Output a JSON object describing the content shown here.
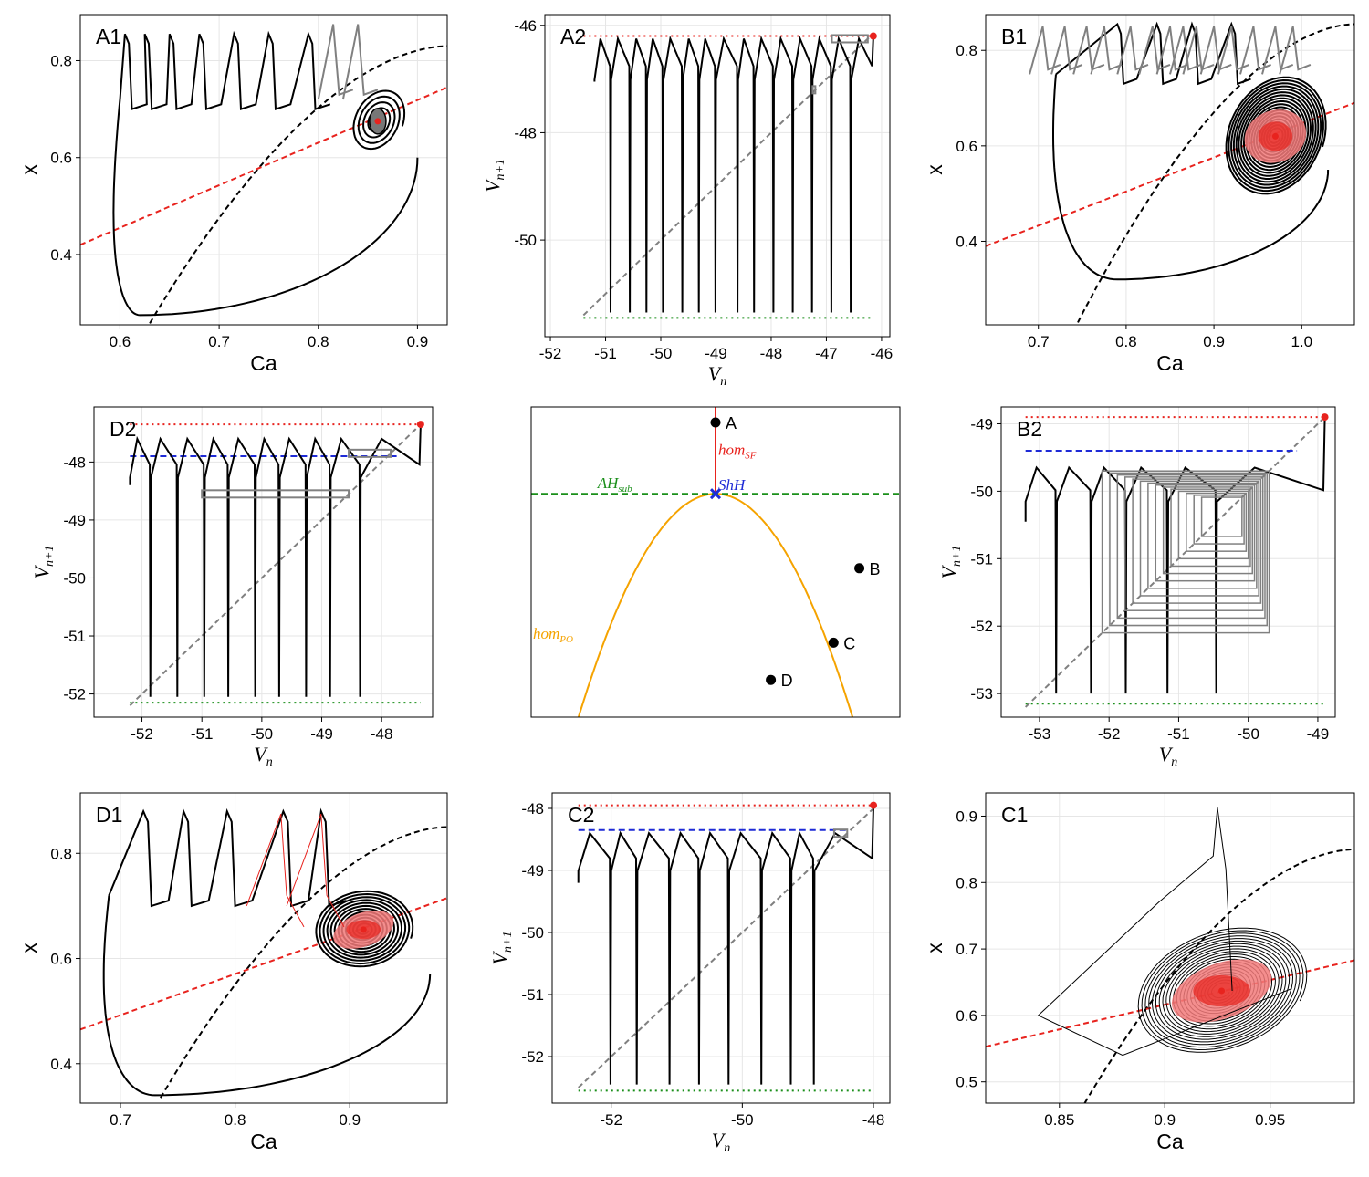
{
  "chart_data": [
    {
      "id": "A1",
      "type": "line",
      "panel_label": "A1",
      "kind": "phase",
      "xlabel": "Ca",
      "ylabel": "x",
      "xlim": [
        0.56,
        0.93
      ],
      "ylim": [
        0.255,
        0.895
      ],
      "xticks": [
        {
          "v": 0.6,
          "t": "0.6"
        },
        {
          "v": 0.7,
          "t": "0.7"
        },
        {
          "v": 0.8,
          "t": "0.8"
        },
        {
          "v": 0.9,
          "t": "0.9"
        }
      ],
      "yticks": [
        {
          "v": 0.4,
          "t": "0.4"
        },
        {
          "v": 0.6,
          "t": "0.6"
        },
        {
          "v": 0.8,
          "t": "0.8"
        }
      ],
      "null_x": {
        "x0": 0.63,
        "y0": 0.258,
        "x1": 0.93,
        "y1": 0.83,
        "a": 0.6,
        "b": 1.0
      },
      "null_ca": {
        "x": [
          0.56,
          0.93
        ],
        "y": [
          0.42,
          0.745
        ]
      },
      "eq": [
        0.86,
        0.675
      ],
      "burst": {
        "start": [
          0.6,
          0.72
        ],
        "spikes": [
          0.605,
          0.625,
          0.65,
          0.68,
          0.715,
          0.75,
          0.79
        ],
        "peak": 0.855,
        "trough": 0.7,
        "end": [
          0.81,
          0.74
        ],
        "loop": [
          0.62,
          0.275
        ],
        "loop_right": [
          0.9,
          0.6
        ]
      },
      "grey_spikes": [
        0.815,
        0.84
      ],
      "grey_peak": 0.875,
      "spiral": {
        "rx0": 0.03,
        "ry0": 0.09,
        "turns": 5
      }
    },
    {
      "id": "A2",
      "type": "line",
      "panel_label": "A2",
      "kind": "map",
      "xlabel": "V_n",
      "ylabel": "V_{n+1}",
      "xlim": [
        -52.1,
        -45.85
      ],
      "ylim": [
        -51.8,
        -45.8
      ],
      "xticks": [
        {
          "v": -52,
          "t": "-52"
        },
        {
          "v": -51,
          "t": "-51"
        },
        {
          "v": -50,
          "t": "-50"
        },
        {
          "v": -49,
          "t": "-49"
        },
        {
          "v": -48,
          "t": "-48"
        },
        {
          "v": -47,
          "t": "-47"
        },
        {
          "v": -46,
          "t": "-46"
        }
      ],
      "yticks": [
        {
          "v": -50,
          "t": "-50"
        },
        {
          "v": -48,
          "t": "-48"
        },
        {
          "v": -46,
          "t": "-46"
        }
      ],
      "red_line": -46.2,
      "blue_line": null,
      "green_line": -51.45,
      "diag": [
        -51.4,
        -46.2
      ],
      "teeth": [
        -51.2,
        -50.9,
        -50.55,
        -50.25,
        -49.95,
        -49.6,
        -49.3,
        -49.0,
        -48.6,
        -48.3,
        -47.95,
        -47.6,
        -47.25,
        -46.9,
        -46.55
      ],
      "top": -46.25,
      "bottom": -51.35,
      "tip": [
        -46.15,
        -46.2
      ],
      "cobweb": [
        [
          -47.25,
          -47.2
        ],
        [
          -46.9,
          -46.25
        ]
      ]
    },
    {
      "id": "B1",
      "type": "line",
      "panel_label": "B1",
      "kind": "phase",
      "xlabel": "Ca",
      "ylabel": "x",
      "xlim": [
        0.64,
        1.06
      ],
      "ylim": [
        0.225,
        0.875
      ],
      "xticks": [
        {
          "v": 0.7,
          "t": "0.7"
        },
        {
          "v": 0.8,
          "t": "0.8"
        },
        {
          "v": 0.9,
          "t": "0.9"
        },
        {
          "v": 1.0,
          "t": "1.0"
        }
      ],
      "yticks": [
        {
          "v": 0.4,
          "t": "0.4"
        },
        {
          "v": 0.6,
          "t": "0.6"
        },
        {
          "v": 0.8,
          "t": "0.8"
        }
      ],
      "null_x": {
        "x0": 0.745,
        "y0": 0.23,
        "x1": 1.06,
        "y1": 0.855,
        "a": 0.6,
        "b": 1.0
      },
      "null_ca": {
        "x": [
          0.64,
          1.06
        ],
        "y": [
          0.39,
          0.69
        ]
      },
      "eq": [
        0.97,
        0.62
      ],
      "burst": {
        "start": [
          0.72,
          0.75
        ],
        "spikes": [
          0.79,
          0.835,
          0.875,
          0.92
        ],
        "peak": 0.855,
        "trough": 0.73,
        "end": [
          0.95,
          0.76
        ],
        "loop": [
          0.79,
          0.32
        ],
        "loop_right": [
          1.03,
          0.55
        ]
      },
      "grey_spikes": [
        0.705,
        0.73,
        0.755,
        0.775,
        0.805,
        0.83,
        0.85,
        0.865,
        0.88,
        0.9,
        0.92,
        0.945,
        0.97,
        0.99
      ],
      "grey_peak": 0.85,
      "spiral": {
        "rx0": 0.065,
        "ry0": 0.17,
        "turns": 18
      }
    },
    {
      "id": "D2",
      "type": "line",
      "panel_label": "D2",
      "kind": "map",
      "xlabel": "V_n",
      "ylabel": "V_{n+1}",
      "xlim": [
        -52.8,
        -47.15
      ],
      "ylim": [
        -52.4,
        -47.05
      ],
      "xticks": [
        {
          "v": -52,
          "t": "-52"
        },
        {
          "v": -51,
          "t": "-51"
        },
        {
          "v": -50,
          "t": "-50"
        },
        {
          "v": -49,
          "t": "-49"
        },
        {
          "v": -48,
          "t": "-48"
        }
      ],
      "yticks": [
        {
          "v": -52,
          "t": "-52"
        },
        {
          "v": -51,
          "t": "-51"
        },
        {
          "v": -50,
          "t": "-50"
        },
        {
          "v": -49,
          "t": "-49"
        },
        {
          "v": -48,
          "t": "-48"
        }
      ],
      "red_line": -47.35,
      "blue_line": -47.9,
      "green_line": -52.15,
      "diag": [
        -52.2,
        -47.4
      ],
      "teeth": [
        -52.2,
        -51.85,
        -51.4,
        -50.95,
        -50.55,
        -50.1,
        -49.7,
        -49.25,
        -48.85,
        -48.35
      ],
      "top": -47.6,
      "bottom": -52.05,
      "tip": [
        -47.35,
        -47.35
      ],
      "cobweb": [
        [
          -51.0,
          -48.55
        ],
        [
          -48.55,
          -47.85
        ]
      ]
    },
    {
      "id": "CENTER",
      "type": "line",
      "kind": "bifurcation",
      "xlim": [
        0,
        1
      ],
      "ylim": [
        0,
        1
      ],
      "labels": {
        "hom_sf": "hom",
        "hom_sf_sub": "SF",
        "shh": "ShH",
        "ah_sub": "AH",
        "ah_sub_sub": "sub",
        "hom_po": "hom",
        "hom_po_sub": "PO"
      },
      "points": [
        {
          "name": "A",
          "x": 0.5,
          "y": 0.95
        },
        {
          "name": "B",
          "x": 0.89,
          "y": 0.48
        },
        {
          "name": "C",
          "x": 0.82,
          "y": 0.24
        },
        {
          "name": "D",
          "x": 0.65,
          "y": 0.12
        }
      ],
      "shh_point": [
        0.5,
        0.72
      ],
      "ah_y": 0.72
    },
    {
      "id": "B2",
      "type": "line",
      "panel_label": "B2",
      "kind": "map",
      "xlabel": "V_n",
      "ylabel": "V_{n+1}",
      "xlim": [
        -53.55,
        -48.75
      ],
      "ylim": [
        -53.35,
        -48.75
      ],
      "xticks": [
        {
          "v": -53,
          "t": "-53"
        },
        {
          "v": -52,
          "t": "-52"
        },
        {
          "v": -51,
          "t": "-51"
        },
        {
          "v": -50,
          "t": "-50"
        },
        {
          "v": -49,
          "t": "-49"
        }
      ],
      "yticks": [
        {
          "v": -53,
          "t": "-53"
        },
        {
          "v": -52,
          "t": "-52"
        },
        {
          "v": -51,
          "t": "-51"
        },
        {
          "v": -50,
          "t": "-50"
        },
        {
          "v": -49,
          "t": "-49"
        }
      ],
      "red_line": -48.9,
      "blue_line": -49.4,
      "green_line": -53.15,
      "diag": [
        -53.2,
        -48.9
      ],
      "teeth": [
        -53.2,
        -52.75,
        -52.25,
        -51.75,
        -51.15,
        -50.45
      ],
      "top": -49.65,
      "bottom": -53.0,
      "tip": [
        -48.9,
        -48.9
      ],
      "cobweb_box": [
        -52.1,
        -49.7,
        -52.1,
        -49.7
      ]
    },
    {
      "id": "D1",
      "type": "line",
      "panel_label": "D1",
      "kind": "phase",
      "xlabel": "Ca",
      "ylabel": "x",
      "xlim": [
        0.665,
        0.985
      ],
      "ylim": [
        0.325,
        0.915
      ],
      "xticks": [
        {
          "v": 0.7,
          "t": "0.7"
        },
        {
          "v": 0.8,
          "t": "0.8"
        },
        {
          "v": 0.9,
          "t": "0.9"
        }
      ],
      "yticks": [
        {
          "v": 0.4,
          "t": "0.4"
        },
        {
          "v": 0.6,
          "t": "0.6"
        },
        {
          "v": 0.8,
          "t": "0.8"
        }
      ],
      "null_x": {
        "x0": 0.735,
        "y0": 0.335,
        "x1": 0.985,
        "y1": 0.85,
        "a": 0.6,
        "b": 1.0
      },
      "null_ca": {
        "x": [
          0.665,
          0.985
        ],
        "y": [
          0.465,
          0.715
        ]
      },
      "eq": [
        0.912,
        0.655
      ],
      "burst": {
        "start": [
          0.69,
          0.72
        ],
        "spikes": [
          0.72,
          0.755,
          0.793,
          0.842,
          0.875
        ],
        "peak": 0.88,
        "trough": 0.7,
        "end": [
          0.81,
          0.55
        ],
        "loop": [
          0.73,
          0.34
        ],
        "loop_right": [
          0.97,
          0.57
        ]
      },
      "red_spikes": [
        0.84,
        0.875
      ],
      "red_peak": 0.875,
      "spiral": {
        "rx0": 0.05,
        "ry0": 0.1,
        "turns": 12
      }
    },
    {
      "id": "C2",
      "type": "line",
      "panel_label": "C2",
      "kind": "map",
      "xlabel": "V_n",
      "ylabel": "V_{n+1}",
      "xlim": [
        -52.9,
        -47.75
      ],
      "ylim": [
        -52.75,
        -47.75
      ],
      "xticks": [
        {
          "v": -52,
          "t": "-52"
        },
        {
          "v": -50,
          "t": "-50"
        },
        {
          "v": -48,
          "t": "-48"
        }
      ],
      "yticks": [
        {
          "v": -52,
          "t": "-52"
        },
        {
          "v": -51,
          "t": "-51"
        },
        {
          "v": -50,
          "t": "-50"
        },
        {
          "v": -49,
          "t": "-49"
        },
        {
          "v": -48,
          "t": "-48"
        }
      ],
      "red_line": -47.95,
      "blue_line": -48.35,
      "green_line": -52.55,
      "diag": [
        -52.5,
        -47.95
      ],
      "teeth": [
        -52.5,
        -52.0,
        -51.6,
        -51.1,
        -50.65,
        -50.2,
        -49.7,
        -49.25,
        -48.9
      ],
      "top": -48.4,
      "bottom": -52.45,
      "tip": [
        -48.0,
        -47.95
      ],
      "cobweb": [
        [
          -48.85,
          -49.15
        ],
        [
          -48.6,
          -48.4
        ]
      ]
    },
    {
      "id": "C1",
      "type": "line",
      "panel_label": "C1",
      "kind": "phase",
      "xlabel": "Ca",
      "ylabel": "x",
      "xlim": [
        0.815,
        0.99
      ],
      "ylim": [
        0.468,
        0.935
      ],
      "xticks": [
        {
          "v": 0.85,
          "t": "0.85"
        },
        {
          "v": 0.9,
          "t": "0.9"
        },
        {
          "v": 0.95,
          "t": "0.95"
        }
      ],
      "yticks": [
        {
          "v": 0.5,
          "t": "0.5"
        },
        {
          "v": 0.6,
          "t": "0.6"
        },
        {
          "v": 0.7,
          "t": "0.7"
        },
        {
          "v": 0.8,
          "t": "0.8"
        },
        {
          "v": 0.9,
          "t": "0.9"
        }
      ],
      "null_x": {
        "x0": 0.862,
        "y0": 0.468,
        "x1": 0.99,
        "y1": 0.85,
        "a": 0.6,
        "b": 1.0
      },
      "null_ca": {
        "x": [
          0.815,
          0.99
        ],
        "y": [
          0.553,
          0.683
        ]
      },
      "eq": [
        0.927,
        0.637
      ],
      "single_spike": {
        "x": 0.927,
        "peak": 0.913
      },
      "spiral": {
        "rx0": 0.045,
        "ry0": 0.13,
        "turns": 22,
        "thin": true
      }
    }
  ]
}
